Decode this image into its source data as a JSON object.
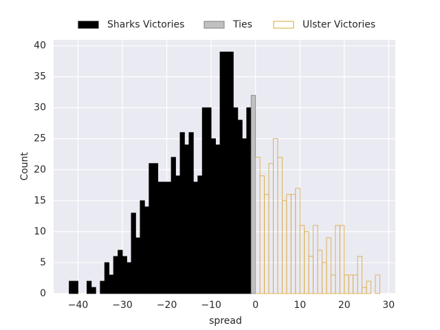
{
  "chart_data": {
    "type": "histogram",
    "xlabel": "spread",
    "ylabel": "Count",
    "bins": [
      -42,
      -41,
      -40,
      -39,
      -38,
      -37,
      -36,
      -35,
      -34,
      -33,
      -32,
      -31,
      -30,
      -29,
      -28,
      -27,
      -26,
      -25,
      -24,
      -23,
      -22,
      -21,
      -20,
      -19,
      -18,
      -17,
      -16,
      -15,
      -14,
      -13,
      -12,
      -11,
      -10,
      -9,
      -8,
      -7,
      -6,
      -5,
      -4,
      -3,
      -2,
      -1,
      0,
      1,
      2,
      3,
      4,
      5,
      6,
      7,
      8,
      9,
      10,
      11,
      12,
      13,
      14,
      15,
      16,
      17,
      18,
      19,
      20,
      21,
      22,
      23,
      24,
      25,
      26,
      27,
      28
    ],
    "series": [
      {
        "name": "Sharks Victories",
        "color": "#000000",
        "edgecolor": "#000000",
        "filled": true,
        "values": [
          2,
          2,
          0,
          0,
          2,
          1,
          0,
          2,
          5,
          3,
          6,
          7,
          6,
          5,
          13,
          9,
          15,
          14,
          21,
          21,
          18,
          18,
          18,
          22,
          19,
          26,
          24,
          26,
          18,
          19,
          30,
          30,
          25,
          24,
          39,
          39,
          39,
          30,
          28,
          25,
          30,
          0,
          0,
          0,
          0,
          0,
          0,
          0,
          0,
          0,
          0,
          0,
          0,
          0,
          0,
          0,
          0,
          0,
          0,
          0,
          0,
          0,
          0,
          0,
          0,
          0,
          0,
          0,
          0,
          0
        ]
      },
      {
        "name": "Ties",
        "color": "#c0c0c0",
        "edgecolor": "#808080",
        "filled": true,
        "values": [
          0,
          0,
          0,
          0,
          0,
          0,
          0,
          0,
          0,
          0,
          0,
          0,
          0,
          0,
          0,
          0,
          0,
          0,
          0,
          0,
          0,
          0,
          0,
          0,
          0,
          0,
          0,
          0,
          0,
          0,
          0,
          0,
          0,
          0,
          0,
          0,
          0,
          0,
          0,
          0,
          0,
          32,
          0,
          0,
          0,
          0,
          0,
          0,
          0,
          0,
          0,
          0,
          0,
          0,
          0,
          0,
          0,
          0,
          0,
          0,
          0,
          0,
          0,
          0,
          0,
          0,
          0,
          0,
          0,
          0
        ]
      },
      {
        "name": "Ulster Victories",
        "color": "#ffffff",
        "edgecolor": "#d9a431",
        "filled": false,
        "values": [
          0,
          0,
          0,
          0,
          0,
          0,
          0,
          0,
          0,
          0,
          0,
          0,
          0,
          0,
          0,
          0,
          0,
          0,
          0,
          0,
          0,
          0,
          0,
          0,
          0,
          0,
          0,
          0,
          0,
          0,
          0,
          0,
          0,
          0,
          0,
          0,
          0,
          0,
          0,
          0,
          0,
          0,
          22,
          19,
          16,
          21,
          25,
          22,
          15,
          16,
          16,
          17,
          11,
          10,
          6,
          11,
          7,
          5,
          9,
          3,
          11,
          11,
          3,
          3,
          3,
          6,
          1,
          2,
          0,
          3
        ]
      }
    ],
    "xlim": [
      -45.5,
      31.5
    ],
    "ylim": [
      0,
      40.95
    ],
    "xticks": [
      {
        "value": -40,
        "label": "−40"
      },
      {
        "value": -30,
        "label": "−30"
      },
      {
        "value": -20,
        "label": "−20"
      },
      {
        "value": -10,
        "label": "−10"
      },
      0,
      10,
      20,
      30
    ],
    "yticks": [
      0,
      5,
      10,
      15,
      20,
      25,
      30,
      35,
      40
    ],
    "grid": true,
    "legend": "top"
  }
}
